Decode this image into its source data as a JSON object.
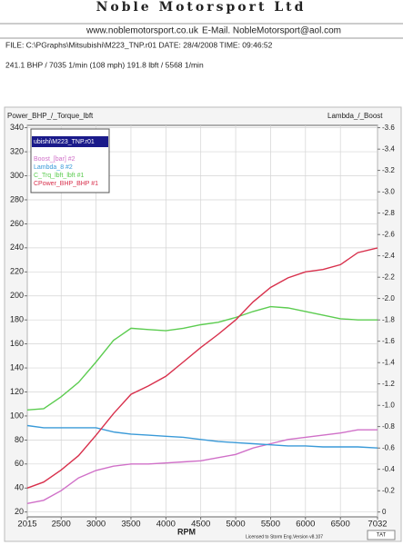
{
  "header": {
    "company": "Noble Motorsport Ltd",
    "website": "www.noblemotorsport.co.uk",
    "email": "E-Mail. NobleMotorsport@aol.com",
    "file": "FILE: C:\\PGraphs\\Mitsubishi\\M223_TNP.r01  DATE: 28/4/2008  TIME: 09:46:52",
    "summary": "241.1 BHP / 7035 1/min (108 mph)   191.8 lbft / 5568 1/min"
  },
  "chart_data": {
    "type": "line",
    "y_label": "Power_BHP_/_Torque_lbft",
    "y2_label": "Lambda_/_Boost",
    "x_label": "RPM",
    "legend_title": "ubishi\\M223_TNP.r01",
    "x": [
      2015,
      2250,
      2500,
      2750,
      3000,
      3250,
      3500,
      3750,
      4000,
      4250,
      4500,
      4750,
      5000,
      5250,
      5500,
      5750,
      6000,
      6250,
      6500,
      6750,
      7032
    ],
    "xlim": [
      2015,
      7032
    ],
    "xticks": [
      2015,
      2500,
      3000,
      3500,
      4000,
      4500,
      5000,
      5500,
      6000,
      6500,
      7032
    ],
    "ylim": [
      16,
      342
    ],
    "yticks": [
      20,
      40,
      60,
      80,
      100,
      120,
      140,
      160,
      180,
      200,
      220,
      240,
      260,
      280,
      300,
      320,
      340
    ],
    "y2lim": [
      0.045,
      -3.6225
    ],
    "y2ticks": [
      0,
      -0.2,
      -0.4,
      -0.6,
      -0.8,
      {
        "value": -1,
        "label": "-1.0"
      },
      -1.2,
      -1.4,
      -1.6,
      -1.8,
      {
        "value": -2,
        "label": "-2.0"
      },
      -2.2,
      -2.4,
      -2.6,
      -2.8,
      {
        "value": -3,
        "label": "-3.0"
      },
      -3.2,
      -3.4,
      -3.6
    ],
    "grid": true,
    "series": [
      {
        "name": "Boost_[bar] #2",
        "color": "#d070c8",
        "axis": "y2",
        "values": [
          -0.08,
          -0.11,
          -0.2,
          -0.32,
          -0.39,
          -0.43,
          -0.45,
          -0.45,
          -0.46,
          -0.47,
          -0.48,
          -0.51,
          -0.54,
          -0.6,
          -0.64,
          -0.68,
          -0.7,
          -0.72,
          -0.74,
          -0.77,
          -0.77
        ]
      },
      {
        "name": "Lambda_8 #2",
        "color": "#3a9ad8",
        "axis": "y2",
        "values": [
          -0.81,
          -0.79,
          -0.79,
          -0.79,
          -0.79,
          -0.75,
          -0.73,
          -0.72,
          -0.71,
          -0.7,
          -0.68,
          -0.66,
          -0.65,
          -0.64,
          -0.63,
          -0.62,
          -0.62,
          -0.61,
          -0.61,
          -0.61,
          -0.6
        ]
      },
      {
        "name": "C_Trq_lbft_lbft #1",
        "color": "#5ccc50",
        "values": [
          105,
          106,
          116,
          128,
          145,
          163,
          173,
          172,
          171,
          173,
          176,
          178,
          182,
          187,
          191,
          190,
          187,
          184,
          181,
          180,
          180
        ]
      },
      {
        "name": "CPower_BHP_BHP #1",
        "color": "#d8304c",
        "values": [
          40,
          45,
          55,
          67,
          84,
          102,
          118,
          125,
          133,
          145,
          157,
          168,
          180,
          195,
          207,
          215,
          220,
          222,
          226,
          236,
          240
        ]
      }
    ]
  },
  "footer": {
    "license": "Licensed to Storm Eng.",
    "version": "Version v8.107",
    "badge": "TAT"
  }
}
